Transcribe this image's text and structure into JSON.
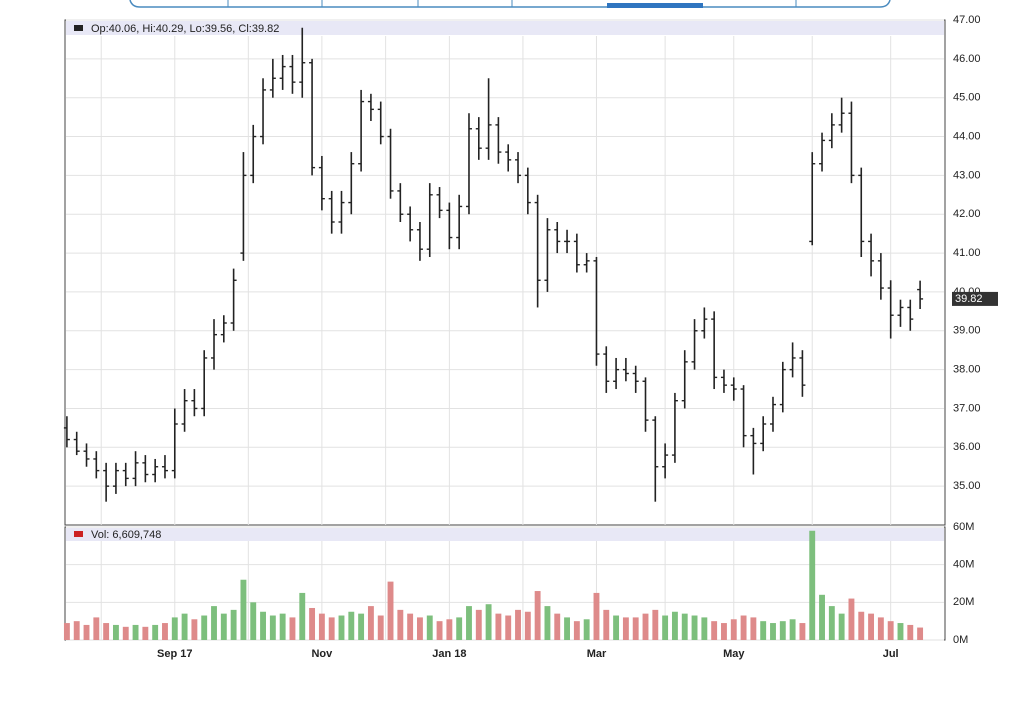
{
  "chart_data": [
    {
      "type": "ohlc",
      "legend": "Op:40.06, Hi:40.29, Lo:39.56, Cl:39.82",
      "color": "#222222",
      "last_price": 39.82,
      "open": [
        36.5,
        36.2,
        35.9,
        35.7,
        35.4,
        35.0,
        35.4,
        35.2,
        35.6,
        35.3,
        35.5,
        35.4,
        36.6,
        37.2,
        37.0,
        38.3,
        38.9,
        39.2,
        41.0,
        43.0,
        44.0,
        45.2,
        45.5,
        45.8,
        45.4,
        45.9,
        43.2,
        42.4,
        41.8,
        42.3,
        43.3,
        44.9,
        44.7,
        44.0,
        42.6,
        42.0,
        41.6,
        41.1,
        42.5,
        42.1,
        41.4,
        42.2,
        44.2,
        43.7,
        44.3,
        43.6,
        43.4,
        43.0,
        42.3,
        40.3,
        41.6,
        41.3,
        41.3,
        40.7,
        40.8,
        38.4,
        37.7,
        38.0,
        37.9,
        37.7,
        36.7,
        35.5,
        35.8,
        37.2,
        38.2,
        39.0,
        39.3,
        37.8,
        37.6,
        37.5,
        36.3,
        36.1,
        36.6,
        37.1,
        38.0,
        38.3,
        41.3,
        43.3,
        43.9,
        44.3,
        44.6,
        43.0,
        41.3,
        40.8,
        40.1,
        39.4,
        39.6,
        40.06
      ],
      "high": [
        36.8,
        36.4,
        36.1,
        35.9,
        35.6,
        35.6,
        35.6,
        35.9,
        35.8,
        35.7,
        35.8,
        37.0,
        37.5,
        37.5,
        38.5,
        39.3,
        39.4,
        40.6,
        43.6,
        44.3,
        45.5,
        46.0,
        46.1,
        46.1,
        46.8,
        46.0,
        43.5,
        42.6,
        42.6,
        43.6,
        45.2,
        45.1,
        44.9,
        44.2,
        42.8,
        42.2,
        41.8,
        42.8,
        42.7,
        42.3,
        42.5,
        44.6,
        44.5,
        45.5,
        44.5,
        43.8,
        43.6,
        43.2,
        42.5,
        41.9,
        41.8,
        41.6,
        41.5,
        41.0,
        40.9,
        38.6,
        38.3,
        38.3,
        38.1,
        37.8,
        36.8,
        36.1,
        37.4,
        38.5,
        39.3,
        39.6,
        39.5,
        38.0,
        37.8,
        37.6,
        36.5,
        36.8,
        37.3,
        38.2,
        38.7,
        38.5,
        43.6,
        44.1,
        44.6,
        45.0,
        44.9,
        43.2,
        41.5,
        41.0,
        40.3,
        39.8,
        39.8,
        40.29
      ],
      "low": [
        36.0,
        35.8,
        35.5,
        35.2,
        34.6,
        34.8,
        35.0,
        35.0,
        35.1,
        35.1,
        35.2,
        35.2,
        36.4,
        36.8,
        36.8,
        38.0,
        38.7,
        39.0,
        40.8,
        42.8,
        43.8,
        45.0,
        45.2,
        45.1,
        45.0,
        43.0,
        42.1,
        41.5,
        41.5,
        42.0,
        43.1,
        44.4,
        43.8,
        42.4,
        41.8,
        41.3,
        40.8,
        40.9,
        41.9,
        41.1,
        41.1,
        42.0,
        43.4,
        43.4,
        43.3,
        43.1,
        42.8,
        42.0,
        39.6,
        40.0,
        41.0,
        41.0,
        40.5,
        40.5,
        38.1,
        37.4,
        37.5,
        37.7,
        37.4,
        36.4,
        34.6,
        35.2,
        35.6,
        37.0,
        38.0,
        38.8,
        37.5,
        37.4,
        37.2,
        36.0,
        35.3,
        35.9,
        36.4,
        36.9,
        37.8,
        37.3,
        41.2,
        43.1,
        43.7,
        44.1,
        42.8,
        40.9,
        40.4,
        39.8,
        38.8,
        39.1,
        39.0,
        39.56
      ],
      "close": [
        36.2,
        35.9,
        35.7,
        35.4,
        35.0,
        35.4,
        35.2,
        35.6,
        35.3,
        35.5,
        35.4,
        36.6,
        37.2,
        37.0,
        38.3,
        38.9,
        39.2,
        40.3,
        43.0,
        44.0,
        45.2,
        45.5,
        45.8,
        45.4,
        45.9,
        43.2,
        42.4,
        41.8,
        42.3,
        43.3,
        44.9,
        44.7,
        44.0,
        42.6,
        42.0,
        41.6,
        41.1,
        42.5,
        42.1,
        41.4,
        42.2,
        44.2,
        43.7,
        44.3,
        43.6,
        43.4,
        43.0,
        42.3,
        40.3,
        41.6,
        41.3,
        41.3,
        40.7,
        40.8,
        38.4,
        37.7,
        38.0,
        37.9,
        37.7,
        36.7,
        35.5,
        35.8,
        37.2,
        38.2,
        39.0,
        39.3,
        37.8,
        37.6,
        37.5,
        36.3,
        36.1,
        36.6,
        37.1,
        38.0,
        38.3,
        37.6,
        43.3,
        43.9,
        44.3,
        44.6,
        43.0,
        41.3,
        40.8,
        40.1,
        39.4,
        39.6,
        39.3,
        39.82
      ],
      "ylim": [
        34,
        47
      ],
      "yticks": [
        {
          "value": 35,
          "label": "35.00"
        },
        {
          "value": 36,
          "label": "36.00"
        },
        {
          "value": 37,
          "label": "37.00"
        },
        {
          "value": 38,
          "label": "38.00"
        },
        {
          "value": 39,
          "label": "39.00"
        },
        {
          "value": 40,
          "label": "40.00"
        },
        {
          "value": 41,
          "label": "41.00"
        },
        {
          "value": 42,
          "label": "42.00"
        },
        {
          "value": 43,
          "label": "43.00"
        },
        {
          "value": 44,
          "label": "44.00"
        },
        {
          "value": 45,
          "label": "45.00"
        },
        {
          "value": 46,
          "label": "46.00"
        },
        {
          "value": 47,
          "label": "47.00"
        }
      ],
      "grid": true
    },
    {
      "type": "bar",
      "legend": "Vol: 6,609,748",
      "legend_color": "#cc2222",
      "up_color": "#7dbf7d",
      "down_color": "#de8a8a",
      "categories": [
        null,
        null,
        null,
        null,
        null,
        null,
        null,
        null,
        null,
        null,
        null,
        "Sep 17",
        null,
        null,
        null,
        null,
        null,
        null,
        null,
        null,
        null,
        null,
        null,
        null,
        null,
        null,
        "Nov",
        null,
        null,
        null,
        null,
        null,
        null,
        null,
        null,
        null,
        null,
        null,
        null,
        "Jan 18",
        null,
        null,
        null,
        null,
        null,
        null,
        null,
        null,
        null,
        null,
        null,
        null,
        null,
        null,
        "Mar",
        null,
        null,
        null,
        null,
        null,
        null,
        null,
        null,
        null,
        null,
        null,
        null,
        null,
        "May",
        null,
        null,
        null,
        null,
        null,
        null,
        null,
        null,
        null,
        null,
        null,
        null,
        null,
        null,
        null,
        "Jul",
        null,
        null,
        null
      ],
      "values": [
        9000000,
        10000000,
        8000000,
        12000000,
        9000000,
        8000000,
        7000000,
        8000000,
        7000000,
        8000000,
        9000000,
        12000000,
        14000000,
        11000000,
        13000000,
        18000000,
        14000000,
        16000000,
        32000000,
        20000000,
        15000000,
        13000000,
        14000000,
        12000000,
        25000000,
        17000000,
        14000000,
        12000000,
        13000000,
        15000000,
        14000000,
        18000000,
        13000000,
        31000000,
        16000000,
        14000000,
        12000000,
        13000000,
        10000000,
        11000000,
        12000000,
        18000000,
        16000000,
        19000000,
        14000000,
        13000000,
        16000000,
        15000000,
        26000000,
        18000000,
        14000000,
        12000000,
        10000000,
        11000000,
        25000000,
        16000000,
        13000000,
        12000000,
        12000000,
        14000000,
        16000000,
        13000000,
        15000000,
        14000000,
        13000000,
        12000000,
        10000000,
        9000000,
        11000000,
        13000000,
        12000000,
        10000000,
        9000000,
        10000000,
        11000000,
        9000000,
        58000000,
        24000000,
        18000000,
        14000000,
        22000000,
        15000000,
        14000000,
        12000000,
        10000000,
        9000000,
        8000000,
        6609748
      ],
      "ylim": [
        0,
        60000000
      ],
      "yticks": [
        {
          "value": 0,
          "label": "0M"
        },
        {
          "value": 20000000,
          "label": "20M"
        },
        {
          "value": 40000000,
          "label": "40M"
        },
        {
          "value": 60000000,
          "label": "60M"
        }
      ],
      "grid": true
    }
  ]
}
